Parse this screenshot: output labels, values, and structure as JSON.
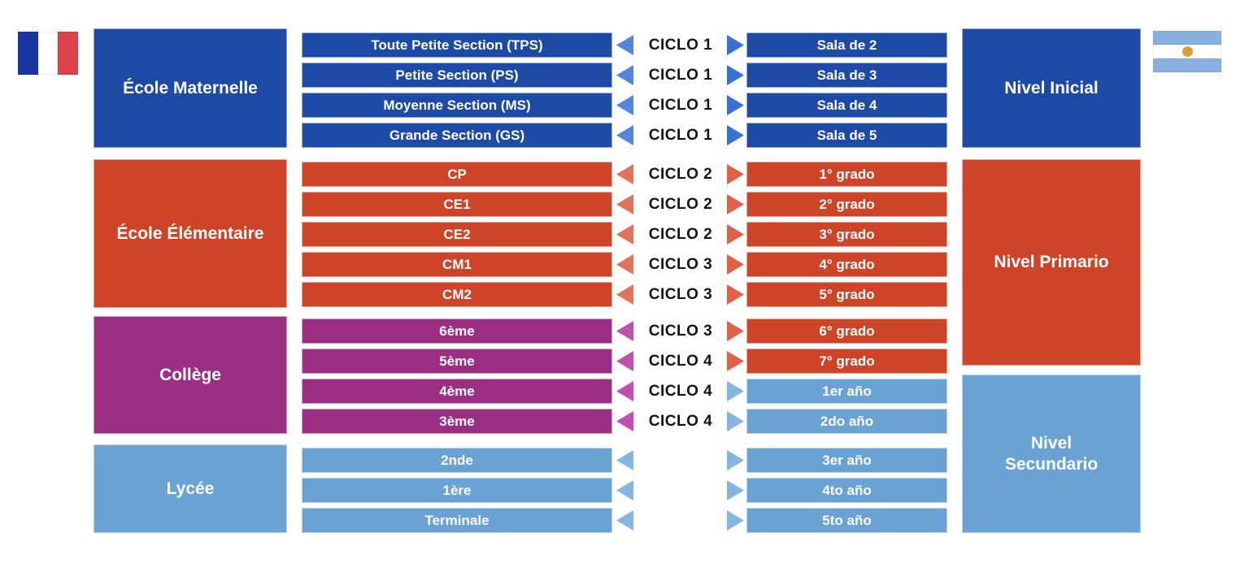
{
  "palette": {
    "dark_blue": "#1C4AA4",
    "red": "#CE4429",
    "purple": "#992E82",
    "light_blue": "#6BA2D4",
    "arrow_blue_left": "#5585DB",
    "arrow_blue_right": "#3A6FD3",
    "arrow_salmon_left": "#E2735B",
    "arrow_salmon_right": "#E2604A",
    "arrow_purple": "#C050AC",
    "arrow_light_blue": "#85B6E2",
    "flag_fr_blue": "#1B35A0",
    "flag_fr_white": "#FFFFFF",
    "flag_fr_red": "#DC4348",
    "flag_ar_blue": "#8AB0DF",
    "flag_ar_white": "#FFFFFF",
    "flag_ar_sun": "#DDA033",
    "ciclo_text": "#141414",
    "bar_text": "#FFFFFF",
    "background": "#FFFFFF"
  },
  "left_blocks": [
    {
      "label": "École Maternelle"
    },
    {
      "label": "École Élémentaire"
    },
    {
      "label": "Collège"
    },
    {
      "label": "Lycée"
    }
  ],
  "right_blocks": [
    {
      "label": "Nivel Inicial"
    },
    {
      "label": "Nivel Primario"
    },
    {
      "label": "Nivel Secundario"
    }
  ],
  "rows": [
    {
      "fr": "Toute Petite Section (TPS)",
      "ciclo": "CICLO 1",
      "ar": "Sala de 2"
    },
    {
      "fr": "Petite Section (PS)",
      "ciclo": "CICLO 1",
      "ar": "Sala de 3"
    },
    {
      "fr": "Moyenne Section (MS)",
      "ciclo": "CICLO 1",
      "ar": "Sala de 4"
    },
    {
      "fr": "Grande Section (GS)",
      "ciclo": "CICLO 1",
      "ar": "Sala de 5"
    },
    {
      "fr": "CP",
      "ciclo": "CICLO 2",
      "ar": "1° grado"
    },
    {
      "fr": "CE1",
      "ciclo": "CICLO 2",
      "ar": "2° grado"
    },
    {
      "fr": "CE2",
      "ciclo": "CICLO 2",
      "ar": "3° grado"
    },
    {
      "fr": "CM1",
      "ciclo": "CICLO 3",
      "ar": "4° grado"
    },
    {
      "fr": "CM2",
      "ciclo": "CICLO 3",
      "ar": "5° grado"
    },
    {
      "fr": "6ème",
      "ciclo": "CICLO 3",
      "ar": "6° grado"
    },
    {
      "fr": "5ème",
      "ciclo": "CICLO 4",
      "ar": "7° grado"
    },
    {
      "fr": "4ème",
      "ciclo": "CICLO 4",
      "ar": "1er año"
    },
    {
      "fr": "3ème",
      "ciclo": "CICLO 4",
      "ar": "2do año"
    },
    {
      "fr": "2nde",
      "ciclo": "",
      "ar": "3er año"
    },
    {
      "fr": "1ère",
      "ciclo": "",
      "ar": "4to año"
    },
    {
      "fr": "Terminale",
      "ciclo": "",
      "ar": "5to año"
    }
  ]
}
